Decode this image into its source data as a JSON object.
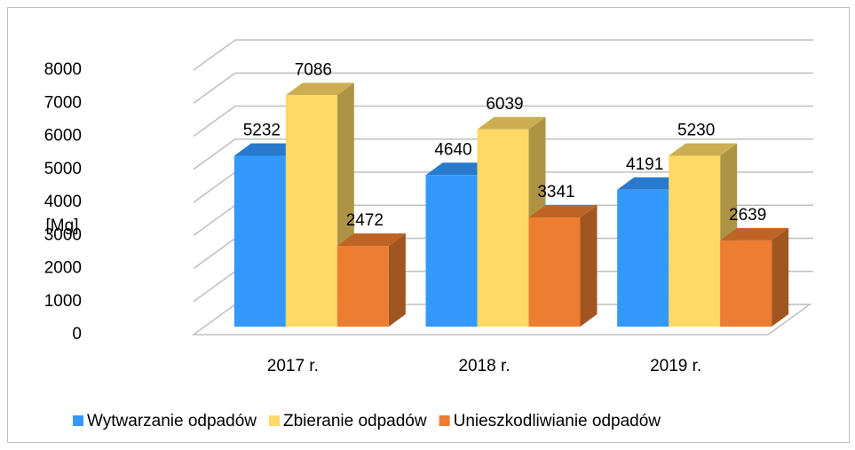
{
  "chart_data": {
    "type": "bar3d",
    "y_label": "[Mg]",
    "categories": [
      "2017 r.",
      "2018 r.",
      "2019 r."
    ],
    "series": [
      {
        "name": "Wytwarzanie odpadów",
        "color": "#3399ff",
        "values": [
          5232,
          4640,
          4191
        ]
      },
      {
        "name": "Zbieranie odpadów",
        "color": "#ffd966",
        "values": [
          7086,
          6039,
          5230
        ]
      },
      {
        "name": "Unieszkodliwianie odpadów",
        "color": "#ed7d31",
        "values": [
          2472,
          3341,
          2639
        ]
      }
    ],
    "ylim": [
      0,
      8000
    ],
    "yticks": [
      0,
      1000,
      2000,
      3000,
      4000,
      5000,
      6000,
      7000,
      8000
    ],
    "grid": true,
    "legend": "bottom"
  }
}
